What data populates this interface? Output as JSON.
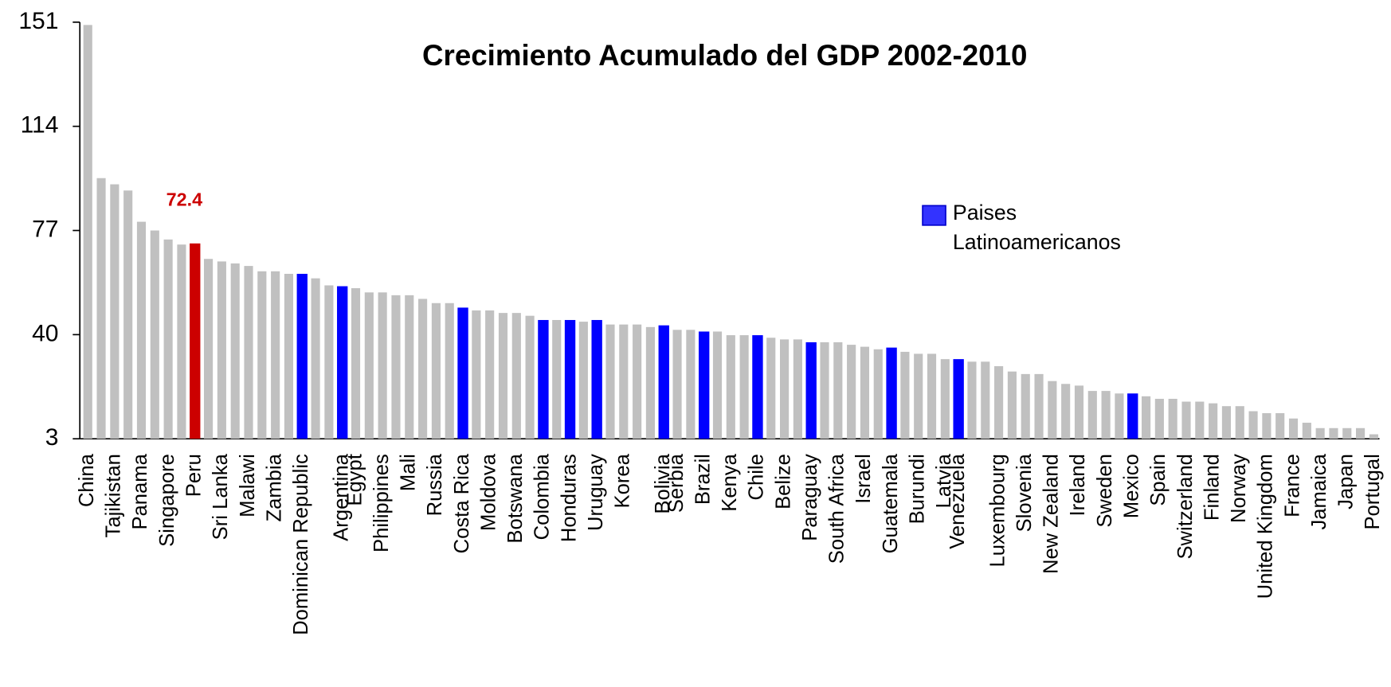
{
  "chart_data": {
    "type": "bar",
    "title": "Crecimiento Acumulado del GDP 2002-2010",
    "categories": [
      "China",
      null,
      "Tajikistan",
      null,
      "Panama",
      null,
      "Singapore",
      null,
      "Peru",
      null,
      "Sri Lanka",
      null,
      "Malawi",
      null,
      "Zambia",
      null,
      "Dominican Republic",
      null,
      null,
      "Argentina",
      "Egypt",
      null,
      "Philippines",
      null,
      "Mali",
      null,
      "Russia",
      null,
      "Costa Rica",
      null,
      "Moldova",
      null,
      "Botswana",
      null,
      "Colombia",
      null,
      "Honduras",
      null,
      "Uruguay",
      null,
      "Korea",
      null,
      null,
      "Bolivia",
      "Serbia",
      null,
      "Brazil",
      null,
      "Kenya",
      null,
      "Chile",
      null,
      "Belize",
      null,
      "Paraguay",
      null,
      "South Africa",
      null,
      "Israel",
      null,
      "Guatemala",
      null,
      "Burundi",
      null,
      "Latvia",
      "Venezuela",
      null,
      null,
      "Luxembourg",
      null,
      "Slovenia",
      null,
      "New Zealand",
      null,
      "Ireland",
      null,
      "Sweden",
      null,
      "Mexico",
      null,
      "Spain",
      null,
      "Switzerland",
      null,
      "Finland",
      null,
      "Norway",
      null,
      "United Kingdom",
      null,
      "France",
      null,
      "Jamaica",
      null,
      "Japan",
      null,
      "Portugal"
    ],
    "values": [
      150,
      95.6,
      93.4,
      91.2,
      80.1,
      77,
      73.8,
      72,
      72.4,
      66.9,
      66,
      65.3,
      64.4,
      62.5,
      62.5,
      61.6,
      61.6,
      60,
      57.5,
      57.2,
      56.5,
      55,
      55,
      54,
      54,
      52.7,
      51.2,
      51.2,
      49.6,
      48.6,
      48.6,
      47.7,
      47.7,
      46.7,
      45.2,
      45.2,
      45.2,
      44.6,
      45.2,
      43.6,
      43.6,
      43.6,
      42.7,
      43.3,
      41.7,
      41.7,
      41.1,
      41.1,
      39.8,
      39.8,
      39.8,
      38.9,
      38.3,
      38.3,
      37.3,
      37.3,
      37.3,
      36.4,
      35.7,
      34.8,
      35.4,
      33.9,
      33.2,
      33.2,
      31.3,
      31.3,
      30.4,
      30.4,
      28.8,
      26.9,
      26,
      26,
      23.5,
      22.5,
      21.9,
      20,
      20,
      19.1,
      19.1,
      18.1,
      17.2,
      17.2,
      16.2,
      16.2,
      15.6,
      14.6,
      14.6,
      12.8,
      12.1,
      12.1,
      10.2,
      8.7,
      6.8,
      6.8,
      6.8,
      6.8,
      4.6
    ],
    "value_labels": [
      null,
      null,
      null,
      null,
      null,
      null,
      null,
      null,
      "72.4",
      null,
      null,
      null,
      null,
      null,
      null,
      null,
      null,
      null,
      null,
      null,
      null,
      null,
      null,
      null,
      null,
      null,
      null,
      null,
      null,
      null,
      null,
      null,
      null,
      null,
      null,
      null,
      null,
      null,
      null,
      null,
      null,
      null,
      null,
      null,
      null,
      null,
      null,
      null,
      null,
      null,
      null,
      null,
      null,
      null,
      null,
      null,
      null,
      null,
      null,
      null,
      null,
      null,
      null,
      null,
      null,
      null,
      null,
      null,
      null,
      null,
      null,
      null,
      null,
      null,
      null,
      null,
      null,
      null,
      null,
      null,
      null,
      null,
      null,
      null,
      null,
      null,
      null,
      null,
      null,
      null,
      null,
      null,
      null,
      null,
      null,
      null,
      null
    ],
    "colors": [
      "#c0c0c0",
      "#c0c0c0",
      "#c0c0c0",
      "#c0c0c0",
      "#c0c0c0",
      "#c0c0c0",
      "#c0c0c0",
      "#c0c0c0",
      "#cc0000",
      "#c0c0c0",
      "#c0c0c0",
      "#c0c0c0",
      "#c0c0c0",
      "#c0c0c0",
      "#c0c0c0",
      "#c0c0c0",
      "#0000ff",
      "#c0c0c0",
      "#c0c0c0",
      "#0000ff",
      "#c0c0c0",
      "#c0c0c0",
      "#c0c0c0",
      "#c0c0c0",
      "#c0c0c0",
      "#c0c0c0",
      "#c0c0c0",
      "#c0c0c0",
      "#0000ff",
      "#c0c0c0",
      "#c0c0c0",
      "#c0c0c0",
      "#c0c0c0",
      "#c0c0c0",
      "#0000ff",
      "#c0c0c0",
      "#0000ff",
      "#c0c0c0",
      "#0000ff",
      "#c0c0c0",
      "#c0c0c0",
      "#c0c0c0",
      "#c0c0c0",
      "#0000ff",
      "#c0c0c0",
      "#c0c0c0",
      "#0000ff",
      "#c0c0c0",
      "#c0c0c0",
      "#c0c0c0",
      "#0000ff",
      "#c0c0c0",
      "#c0c0c0",
      "#c0c0c0",
      "#0000ff",
      "#c0c0c0",
      "#c0c0c0",
      "#c0c0c0",
      "#c0c0c0",
      "#c0c0c0",
      "#0000ff",
      "#c0c0c0",
      "#c0c0c0",
      "#c0c0c0",
      "#c0c0c0",
      "#0000ff",
      "#c0c0c0",
      "#c0c0c0",
      "#c0c0c0",
      "#c0c0c0",
      "#c0c0c0",
      "#c0c0c0",
      "#c0c0c0",
      "#c0c0c0",
      "#c0c0c0",
      "#c0c0c0",
      "#c0c0c0",
      "#c0c0c0",
      "#0000ff",
      "#c0c0c0",
      "#c0c0c0",
      "#c0c0c0",
      "#c0c0c0",
      "#c0c0c0",
      "#c0c0c0",
      "#c0c0c0",
      "#c0c0c0",
      "#c0c0c0",
      "#c0c0c0",
      "#c0c0c0",
      "#c0c0c0",
      "#c0c0c0",
      "#c0c0c0",
      "#c0c0c0",
      "#c0c0c0",
      "#c0c0c0",
      "#c0c0c0"
    ],
    "value_label_color": "#cc0000",
    "legend": {
      "label": "Paises Latinoamericanos",
      "color": "#3333ff"
    },
    "ylim": [
      3,
      151
    ],
    "yticks": [
      3,
      40,
      77,
      114,
      151
    ],
    "grid": false
  }
}
